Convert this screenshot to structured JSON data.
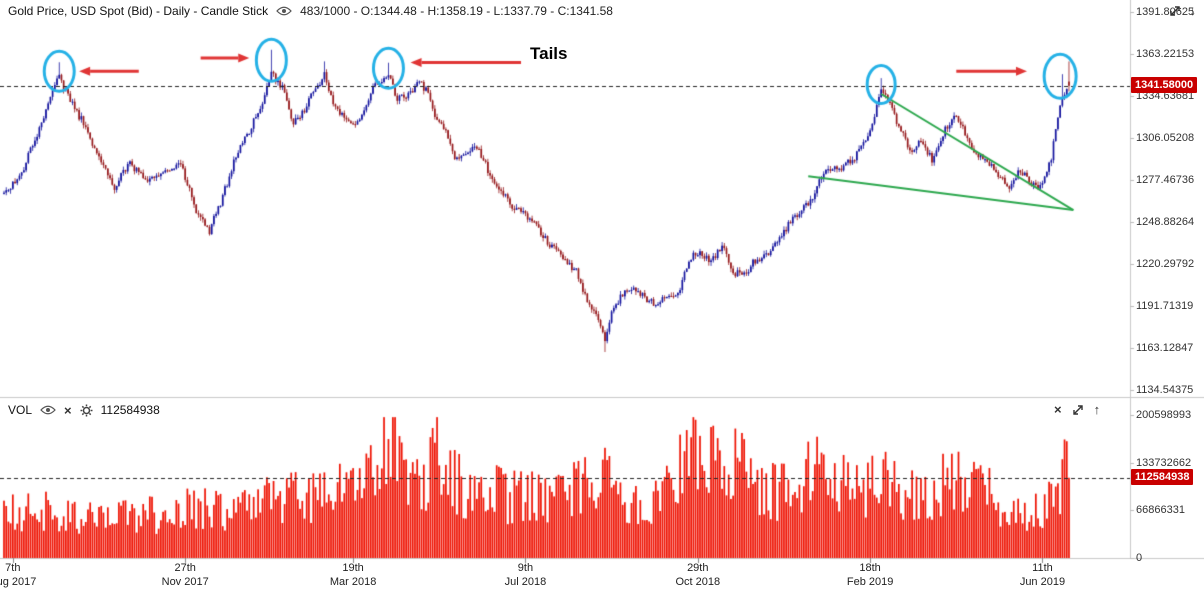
{
  "header": {
    "title": "Gold Price, USD Spot (Bid) - Daily - Candle Stick",
    "ohlc_text": "483/1000 - O:1344.48 - H:1358.19 - L:1337.79 - C:1341.58"
  },
  "volume_header": {
    "label": "VOL"
  },
  "chart_data": {
    "type": "candlestick_with_volume",
    "title": "Gold Price, USD Spot (Bid) - Daily - Candle Stick",
    "period": "Daily",
    "candle_count_label": "483/1000",
    "ohlc_current": {
      "open": 1344.48,
      "high": 1358.19,
      "low": 1337.79,
      "close": 1341.58
    },
    "current_price": 1341.58,
    "current_price_label": "1341.58000",
    "current_volume": 112584938,
    "current_volume_label": "112584938",
    "price_range": [
      1134.54375,
      1391.80625
    ],
    "volume_range": [
      0,
      200598993
    ],
    "price_axis_labels": [
      "1391.80625",
      "1363.22153",
      "1334.63681",
      "1306.05208",
      "1277.46736",
      "1248.88264",
      "1220.29792",
      "1191.71319",
      "1163.12847",
      "1134.54375"
    ],
    "volume_axis_labels": [
      "200598993",
      "133732662",
      "66866331",
      "0"
    ],
    "x_ticks": [
      {
        "day": 4,
        "day_label": "7th",
        "month_label": "Aug 2017"
      },
      {
        "day": 82,
        "day_label": "27th",
        "month_label": "Nov 2017"
      },
      {
        "day": 158,
        "day_label": "19th",
        "month_label": "Mar 2018"
      },
      {
        "day": 236,
        "day_label": "9th",
        "month_label": "Jul 2018"
      },
      {
        "day": 314,
        "day_label": "29th",
        "month_label": "Oct 2018"
      },
      {
        "day": 392,
        "day_label": "18th",
        "month_label": "Feb 2019"
      },
      {
        "day": 470,
        "day_label": "11th",
        "month_label": "Jun 2019"
      }
    ],
    "num_candles": 483,
    "price_anchors": [
      [
        0,
        1268
      ],
      [
        8,
        1283
      ],
      [
        15,
        1308
      ],
      [
        20,
        1330
      ],
      [
        25,
        1348
      ],
      [
        29,
        1334
      ],
      [
        36,
        1316
      ],
      [
        44,
        1290
      ],
      [
        50,
        1273
      ],
      [
        57,
        1289
      ],
      [
        64,
        1277
      ],
      [
        72,
        1281
      ],
      [
        80,
        1289
      ],
      [
        87,
        1256
      ],
      [
        93,
        1243
      ],
      [
        99,
        1266
      ],
      [
        104,
        1290
      ],
      [
        110,
        1308
      ],
      [
        116,
        1326
      ],
      [
        121,
        1350
      ],
      [
        126,
        1340
      ],
      [
        131,
        1316
      ],
      [
        136,
        1326
      ],
      [
        141,
        1340
      ],
      [
        145,
        1349
      ],
      [
        149,
        1330
      ],
      [
        154,
        1320
      ],
      [
        159,
        1314
      ],
      [
        163,
        1326
      ],
      [
        167,
        1340
      ],
      [
        172,
        1347
      ],
      [
        174,
        1348
      ],
      [
        178,
        1332
      ],
      [
        183,
        1336
      ],
      [
        188,
        1345
      ],
      [
        192,
        1336
      ],
      [
        196,
        1318
      ],
      [
        200,
        1313
      ],
      [
        204,
        1292
      ],
      [
        209,
        1297
      ],
      [
        214,
        1301
      ],
      [
        219,
        1284
      ],
      [
        224,
        1271
      ],
      [
        230,
        1260
      ],
      [
        237,
        1253
      ],
      [
        243,
        1241
      ],
      [
        249,
        1230
      ],
      [
        254,
        1223
      ],
      [
        259,
        1215
      ],
      [
        264,
        1196
      ],
      [
        268,
        1186
      ],
      [
        272,
        1167
      ],
      [
        276,
        1192
      ],
      [
        281,
        1201
      ],
      [
        286,
        1203
      ],
      [
        291,
        1196
      ],
      [
        296,
        1193
      ],
      [
        301,
        1199
      ],
      [
        306,
        1203
      ],
      [
        310,
        1223
      ],
      [
        315,
        1230
      ],
      [
        320,
        1221
      ],
      [
        325,
        1233
      ],
      [
        330,
        1214
      ],
      [
        335,
        1213
      ],
      [
        340,
        1223
      ],
      [
        345,
        1227
      ],
      [
        350,
        1236
      ],
      [
        355,
        1247
      ],
      [
        360,
        1256
      ],
      [
        365,
        1262
      ],
      [
        370,
        1281
      ],
      [
        375,
        1284
      ],
      [
        380,
        1287
      ],
      [
        385,
        1293
      ],
      [
        390,
        1304
      ],
      [
        394,
        1322
      ],
      [
        397,
        1341
      ],
      [
        401,
        1330
      ],
      [
        405,
        1314
      ],
      [
        410,
        1298
      ],
      [
        415,
        1303
      ],
      [
        420,
        1291
      ],
      [
        425,
        1309
      ],
      [
        430,
        1322
      ],
      [
        435,
        1310
      ],
      [
        440,
        1295
      ],
      [
        445,
        1290
      ],
      [
        450,
        1281
      ],
      [
        455,
        1272
      ],
      [
        459,
        1284
      ],
      [
        463,
        1279
      ],
      [
        467,
        1272
      ],
      [
        471,
        1279
      ],
      [
        474,
        1292
      ],
      [
        477,
        1322
      ],
      [
        480,
        1338
      ],
      [
        482,
        1341.6
      ]
    ],
    "wick_overrides": [
      {
        "day": 25,
        "high": 1357.6
      },
      {
        "day": 121,
        "high": 1366.1
      },
      {
        "day": 145,
        "high": 1358.2
      },
      {
        "day": 174,
        "high": 1357.3
      },
      {
        "day": 272,
        "low": 1160.4
      },
      {
        "day": 397,
        "high": 1346.8
      },
      {
        "day": 479,
        "high": 1349.5
      }
    ],
    "volume_anchors_millions": [
      [
        0,
        62
      ],
      [
        15,
        70
      ],
      [
        30,
        60
      ],
      [
        45,
        55
      ],
      [
        60,
        58
      ],
      [
        75,
        62
      ],
      [
        90,
        72
      ],
      [
        105,
        68
      ],
      [
        120,
        80
      ],
      [
        135,
        85
      ],
      [
        150,
        92
      ],
      [
        160,
        100
      ],
      [
        168,
        118
      ],
      [
        176,
        196
      ],
      [
        179,
        120
      ],
      [
        184,
        96
      ],
      [
        190,
        100
      ],
      [
        196,
        148
      ],
      [
        202,
        112
      ],
      [
        208,
        96
      ],
      [
        214,
        100
      ],
      [
        220,
        104
      ],
      [
        228,
        86
      ],
      [
        236,
        92
      ],
      [
        244,
        82
      ],
      [
        252,
        86
      ],
      [
        260,
        96
      ],
      [
        268,
        102
      ],
      [
        272,
        112
      ],
      [
        280,
        76
      ],
      [
        290,
        66
      ],
      [
        300,
        118
      ],
      [
        308,
        146
      ],
      [
        316,
        132
      ],
      [
        324,
        126
      ],
      [
        332,
        142
      ],
      [
        340,
        106
      ],
      [
        348,
        92
      ],
      [
        356,
        100
      ],
      [
        364,
        116
      ],
      [
        372,
        132
      ],
      [
        380,
        102
      ],
      [
        388,
        88
      ],
      [
        396,
        112
      ],
      [
        404,
        96
      ],
      [
        412,
        86
      ],
      [
        420,
        96
      ],
      [
        428,
        106
      ],
      [
        436,
        112
      ],
      [
        444,
        92
      ],
      [
        452,
        76
      ],
      [
        458,
        66
      ],
      [
        464,
        62
      ],
      [
        470,
        70
      ],
      [
        475,
        86
      ],
      [
        479,
        102
      ],
      [
        481,
        138
      ],
      [
        482,
        112.584938
      ]
    ],
    "annotations": {
      "tails_text": "Tails",
      "circles": [
        {
          "day": 25,
          "price": 1351.5,
          "rx": 15,
          "ry": 20
        },
        {
          "day": 121,
          "price": 1359,
          "rx": 15,
          "ry": 21
        },
        {
          "day": 174,
          "price": 1353.5,
          "rx": 15,
          "ry": 20
        },
        {
          "day": 397,
          "price": 1342.5,
          "rx": 14,
          "ry": 19
        },
        {
          "day": 478,
          "price": 1348,
          "rx": 16,
          "ry": 22
        }
      ],
      "arrows": [
        {
          "from_day": 61,
          "to_day": 34,
          "price": 1351.5
        },
        {
          "from_day": 89,
          "to_day": 111,
          "price": 1360.5
        },
        {
          "from_day": 234,
          "to_day": 184,
          "price": 1357.5
        },
        {
          "from_day": 431,
          "to_day": 463,
          "price": 1351.5
        }
      ],
      "trendlines": [
        {
          "x1_day": 397,
          "p1": 1336,
          "x2_day": 484,
          "p2": 1257
        },
        {
          "x1_day": 364,
          "p1": 1280,
          "x2_day": 484,
          "p2": 1257
        }
      ]
    },
    "colors": {
      "up": "#14149e",
      "down": "#96191c",
      "volume": "#ee1100",
      "tag_bg": "#c90000",
      "circle": "#25b1e6",
      "arrow": "#e03535",
      "trendline": "#2da84e",
      "dashed": "#222222",
      "axis_line": "#c9c9c9",
      "axis_text": "#333333"
    }
  }
}
